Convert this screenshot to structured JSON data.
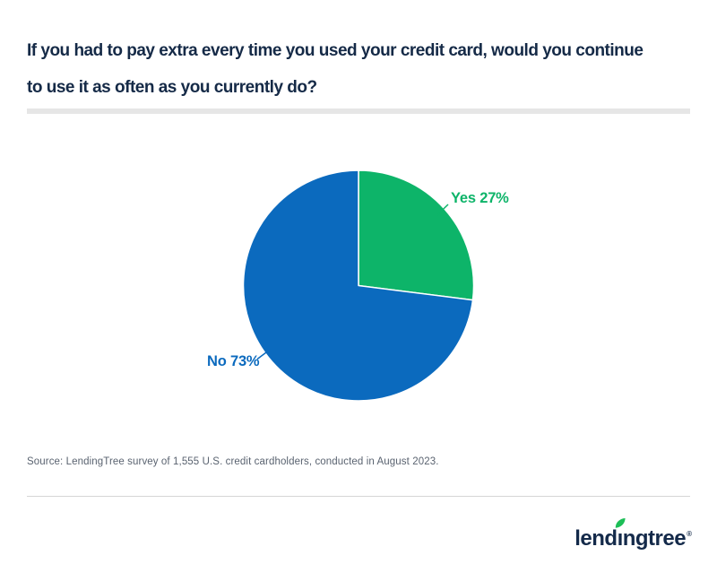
{
  "header": {
    "title": "If you had to pay extra every time you used your credit card, would you continue to use it as often as you currently do?",
    "title_lines": [
      "If you had to pay extra every time you used your credit card, would you continue",
      "to use it as often as you currently do?"
    ]
  },
  "chart_data": {
    "type": "pie",
    "title": "If you had to pay extra every time you used your credit card, would you continue to use it as often as you currently do?",
    "categories": [
      "Yes",
      "No"
    ],
    "values": [
      27,
      73
    ],
    "unit": "%",
    "start_angle_deg": 0,
    "direction": "clockwise",
    "legend_position": "callout-labels",
    "slices": [
      {
        "label": "Yes",
        "value": 27,
        "label_text": "Yes 27%",
        "color": "#0db469"
      },
      {
        "label": "No",
        "value": 73,
        "label_text": "No 73%",
        "color": "#0b6abe"
      }
    ]
  },
  "source": {
    "text": "Source: LendingTree survey of 1,555 U.S. credit cardholders, conducted in August 2023."
  },
  "footer": {
    "logo": {
      "text": "lendingtree",
      "display_parts": [
        "lend",
        "ı",
        "ngtree"
      ],
      "registered": "®",
      "leaf_color": "#1dbe57",
      "text_color": "#142a4a"
    }
  },
  "brand": {
    "navy": "#152a47",
    "green": "#0db469",
    "blue": "#0b6abe",
    "divider_gray": "#e6e6e6"
  }
}
